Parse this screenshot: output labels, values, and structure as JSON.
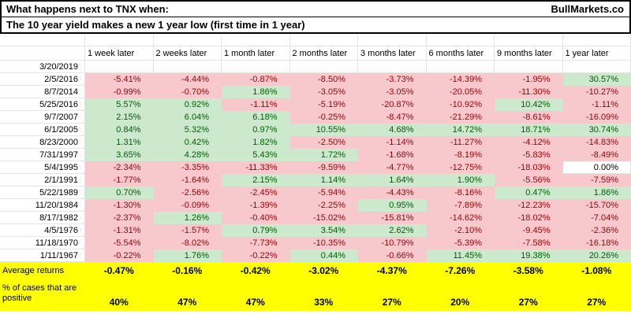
{
  "header": {
    "title_line1": "What happens next to TNX when:",
    "brand": "BullMarkets.co",
    "title_line2": "The 10 year yield makes a new 1 year low (first time in 1 year)"
  },
  "table": {
    "column_headers": [
      "1 week later",
      "2 weeks later",
      "1 month later",
      "2 months later",
      "3 months later",
      "6 months later",
      "9 months later",
      "1 year later"
    ],
    "rows": [
      {
        "date": "3/20/2019",
        "values": [
          "",
          "",
          "",
          "",
          "",
          "",
          "",
          ""
        ]
      },
      {
        "date": "2/5/2016",
        "values": [
          "-5.41%",
          "-4.44%",
          "-0.87%",
          "-8.50%",
          "-3.73%",
          "-14.39%",
          "-1.95%",
          "30.57%"
        ]
      },
      {
        "date": "8/7/2014",
        "values": [
          "-0.99%",
          "-0.70%",
          "1.86%",
          "-3.05%",
          "-3.05%",
          "-20.05%",
          "-11.30%",
          "-10.27%"
        ]
      },
      {
        "date": "5/25/2016",
        "values": [
          "5.57%",
          "0.92%",
          "-1.11%",
          "-5.19%",
          "-20.87%",
          "-10.92%",
          "10.42%",
          "-1.11%"
        ]
      },
      {
        "date": "9/7/2007",
        "values": [
          "2.15%",
          "6.04%",
          "6.18%",
          "-0.25%",
          "-8.47%",
          "-21.29%",
          "-8.61%",
          "-16.09%"
        ]
      },
      {
        "date": "6/1/2005",
        "values": [
          "0.84%",
          "5.32%",
          "0.97%",
          "10.55%",
          "4.68%",
          "14.72%",
          "18.71%",
          "30.74%"
        ]
      },
      {
        "date": "8/23/2000",
        "values": [
          "1.31%",
          "0.42%",
          "1.82%",
          "-2.50%",
          "-1.14%",
          "-11.27%",
          "-4.12%",
          "-14.83%"
        ]
      },
      {
        "date": "7/31/1997",
        "values": [
          "3.65%",
          "4.28%",
          "5.43%",
          "1.72%",
          "-1.68%",
          "-8.19%",
          "-5.83%",
          "-8.49%"
        ]
      },
      {
        "date": "5/4/1995",
        "values": [
          "-2.34%",
          "-3.35%",
          "-11.33%",
          "-9.59%",
          "-4.77%",
          "-12.75%",
          "-18.03%",
          "0.00%"
        ]
      },
      {
        "date": "2/1/1991",
        "values": [
          "-1.77%",
          "-1.64%",
          "2.15%",
          "1.14%",
          "1.64%",
          "1.90%",
          "-5.56%",
          "-7.59%"
        ]
      },
      {
        "date": "5/22/1989",
        "values": [
          "0.70%",
          "-2.56%",
          "-2.45%",
          "-5.94%",
          "-4.43%",
          "-8.16%",
          "0.47%",
          "1.86%"
        ]
      },
      {
        "date": "11/20/1984",
        "values": [
          "-1.30%",
          "-0.09%",
          "-1.39%",
          "-2.25%",
          "0.95%",
          "-7.89%",
          "-12.23%",
          "-15.70%"
        ]
      },
      {
        "date": "8/17/1982",
        "values": [
          "-2.37%",
          "1.26%",
          "-0.40%",
          "-15.02%",
          "-15.81%",
          "-14.62%",
          "-18.02%",
          "-7.04%"
        ]
      },
      {
        "date": "4/5/1976",
        "values": [
          "-1.31%",
          "-1.57%",
          "0.79%",
          "3.54%",
          "2.62%",
          "-2.10%",
          "-9.45%",
          "-2.36%"
        ]
      },
      {
        "date": "11/18/1970",
        "values": [
          "-5.54%",
          "-8.02%",
          "-7.73%",
          "-10.35%",
          "-10.79%",
          "-5.39%",
          "-7.58%",
          "-16.18%"
        ]
      },
      {
        "date": "1/11/1967",
        "values": [
          "-0.22%",
          "1.76%",
          "-0.22%",
          "0.44%",
          "-0.66%",
          "11.45%",
          "19.38%",
          "20.26%"
        ]
      }
    ],
    "summary": {
      "average_label": "Average returns",
      "average_values": [
        "-0.47%",
        "-0.16%",
        "-0.42%",
        "-3.02%",
        "-4.37%",
        "-7.26%",
        "-3.58%",
        "-1.08%"
      ],
      "positive_label_line1": "% of cases that are",
      "positive_label_line2": "positive",
      "positive_values": [
        "40%",
        "47%",
        "47%",
        "33%",
        "27%",
        "20%",
        "27%",
        "27%"
      ]
    }
  },
  "colors": {
    "negative_bg": "#f8c9cc",
    "negative_text": "#9C0006",
    "positive_bg": "#cce9cd",
    "positive_text": "#006100",
    "zero_bg": "#ffffff",
    "summary_bg": "#ffff00"
  }
}
